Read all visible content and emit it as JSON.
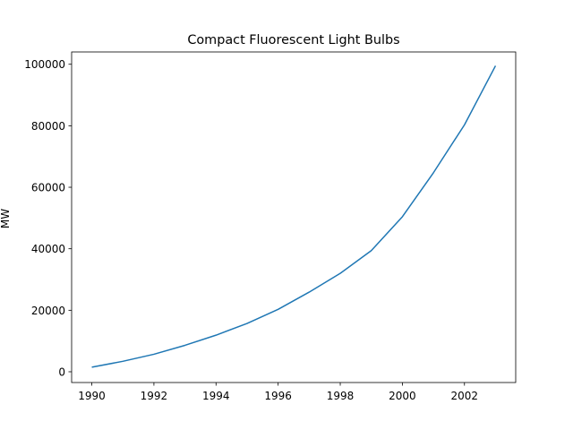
{
  "chart_data": {
    "type": "line",
    "title": "Compact Fluorescent Light Bulbs",
    "xlabel": "",
    "ylabel": "MW",
    "x": [
      1990,
      1991,
      1992,
      1993,
      1994,
      1995,
      1996,
      1997,
      1998,
      1999,
      2000,
      2001,
      2002,
      2003
    ],
    "series": [
      {
        "values": [
          1500,
          3400,
          5700,
          8600,
          11900,
          15700,
          20300,
          25900,
          32000,
          39400,
          50400,
          64700,
          80300,
          99500
        ]
      }
    ],
    "xlim": [
      1989.35,
      2003.65
    ],
    "ylim": [
      -3500,
      104000
    ],
    "xticks": [
      1990,
      1992,
      1994,
      1996,
      1998,
      2000,
      2002
    ],
    "yticks": [
      0,
      20000,
      40000,
      60000,
      80000,
      100000
    ],
    "grid": false,
    "legend": "none",
    "line_color": "#1f77b4"
  }
}
